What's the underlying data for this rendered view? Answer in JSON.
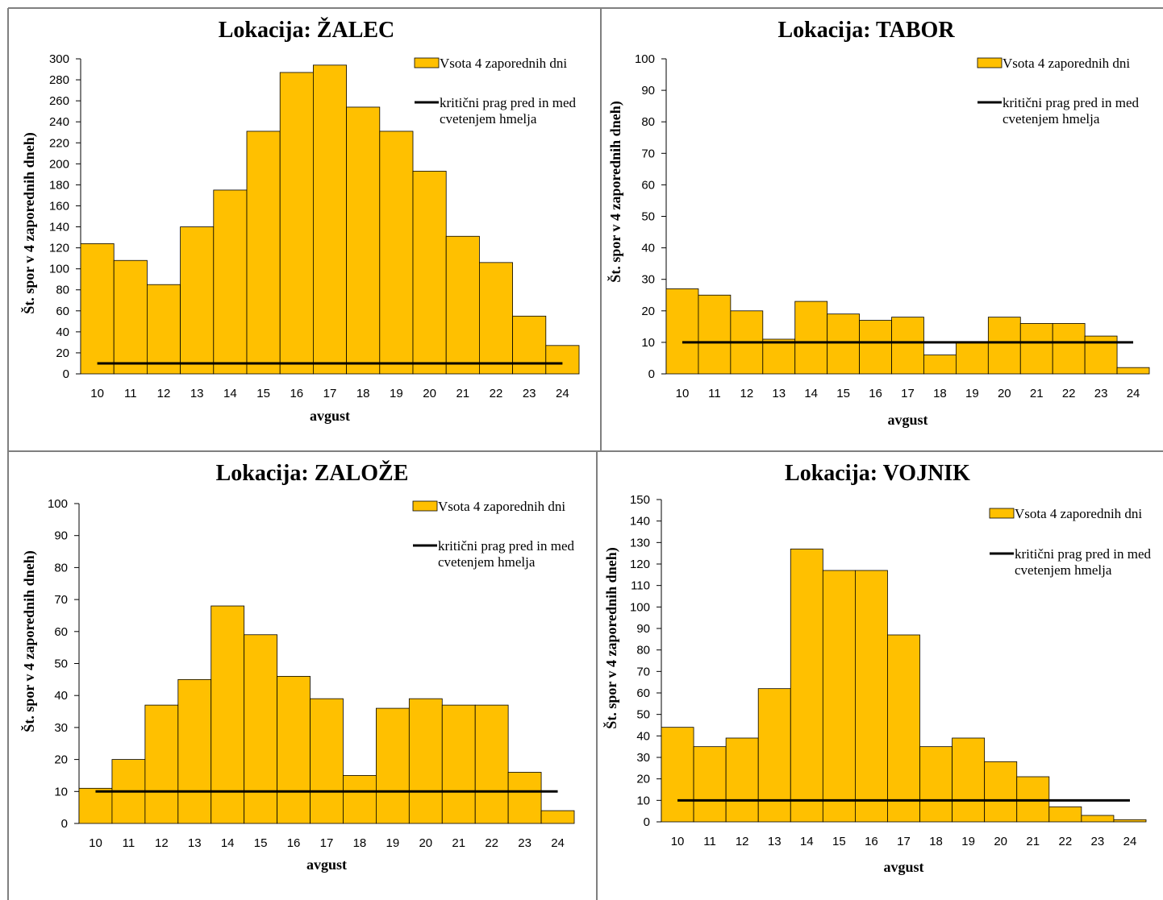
{
  "colors": {
    "bar": "#FFC000",
    "bar_edge": "#000000",
    "threshold": "#000000",
    "frame": "#7f7f7f"
  },
  "chart_data": [
    {
      "type": "bar",
      "title": "Lokacija: ŽALEC",
      "xlabel": "avgust",
      "ylabel": "Št. spor v 4 zaporednih dneh)",
      "categories": [
        "10",
        "11",
        "12",
        "13",
        "14",
        "15",
        "16",
        "17",
        "18",
        "19",
        "20",
        "21",
        "22",
        "23",
        "24"
      ],
      "ylim": [
        0,
        300
      ],
      "ystep": 20,
      "series": [
        {
          "name": "Vsota 4 zaporednih dni",
          "values": [
            124,
            108,
            85,
            140,
            175,
            231,
            287,
            294,
            254,
            231,
            193,
            131,
            106,
            55,
            27
          ]
        },
        {
          "name": "kritični prag pred in med cvetenjem  hmelja",
          "type": "line",
          "values": [
            10,
            10,
            10,
            10,
            10,
            10,
            10,
            10,
            10,
            10,
            10,
            10,
            10,
            10,
            10
          ]
        }
      ],
      "legend_position": "top-right",
      "grid": false
    },
    {
      "type": "bar",
      "title": "Lokacija: TABOR",
      "xlabel": "avgust",
      "ylabel": "Št. spor v 4 zaporednih dneh)",
      "categories": [
        "10",
        "11",
        "12",
        "13",
        "14",
        "15",
        "16",
        "17",
        "18",
        "19",
        "20",
        "21",
        "22",
        "23",
        "24"
      ],
      "ylim": [
        0,
        100
      ],
      "ystep": 10,
      "series": [
        {
          "name": "Vsota 4 zaporednih dni",
          "values": [
            27,
            25,
            20,
            11,
            23,
            19,
            17,
            18,
            6,
            10,
            18,
            16,
            16,
            12,
            2
          ]
        },
        {
          "name": "kritični prag pred in med cvetenjem  hmelja",
          "type": "line",
          "values": [
            10,
            10,
            10,
            10,
            10,
            10,
            10,
            10,
            10,
            10,
            10,
            10,
            10,
            10,
            10
          ]
        }
      ],
      "legend_position": "top-right",
      "grid": false
    },
    {
      "type": "bar",
      "title": "Lokacija: ZALOŽE",
      "xlabel": "avgust",
      "ylabel": "Št. spor v 4 zaporednih dneh)",
      "categories": [
        "10",
        "11",
        "12",
        "13",
        "14",
        "15",
        "16",
        "17",
        "18",
        "19",
        "20",
        "21",
        "22",
        "23",
        "24"
      ],
      "ylim": [
        0,
        100
      ],
      "ystep": 10,
      "series": [
        {
          "name": "Vsota 4 zaporednih dni",
          "values": [
            11,
            20,
            37,
            45,
            68,
            59,
            46,
            39,
            15,
            36,
            39,
            37,
            37,
            16,
            4
          ]
        },
        {
          "name": "kritični prag pred in med cvetenjem  hmelja",
          "type": "line",
          "values": [
            10,
            10,
            10,
            10,
            10,
            10,
            10,
            10,
            10,
            10,
            10,
            10,
            10,
            10,
            10
          ]
        }
      ],
      "legend_position": "top-right",
      "grid": false
    },
    {
      "type": "bar",
      "title": "Lokacija: VOJNIK",
      "xlabel": "avgust",
      "ylabel": "Št. spor v 4 zaporednih dneh)",
      "categories": [
        "10",
        "11",
        "12",
        "13",
        "14",
        "15",
        "16",
        "17",
        "18",
        "19",
        "20",
        "21",
        "22",
        "23",
        "24"
      ],
      "ylim": [
        0,
        150
      ],
      "ystep": 10,
      "series": [
        {
          "name": "Vsota 4 zaporednih dni",
          "values": [
            44,
            35,
            39,
            62,
            127,
            117,
            117,
            87,
            35,
            39,
            28,
            21,
            7,
            3,
            1
          ]
        },
        {
          "name": "kritični prag pred in med cvetenjem  hmelja",
          "type": "line",
          "values": [
            10,
            10,
            10,
            10,
            10,
            10,
            10,
            10,
            10,
            10,
            10,
            10,
            10,
            10,
            10
          ]
        }
      ],
      "legend_position": "top-right",
      "grid": false
    }
  ]
}
